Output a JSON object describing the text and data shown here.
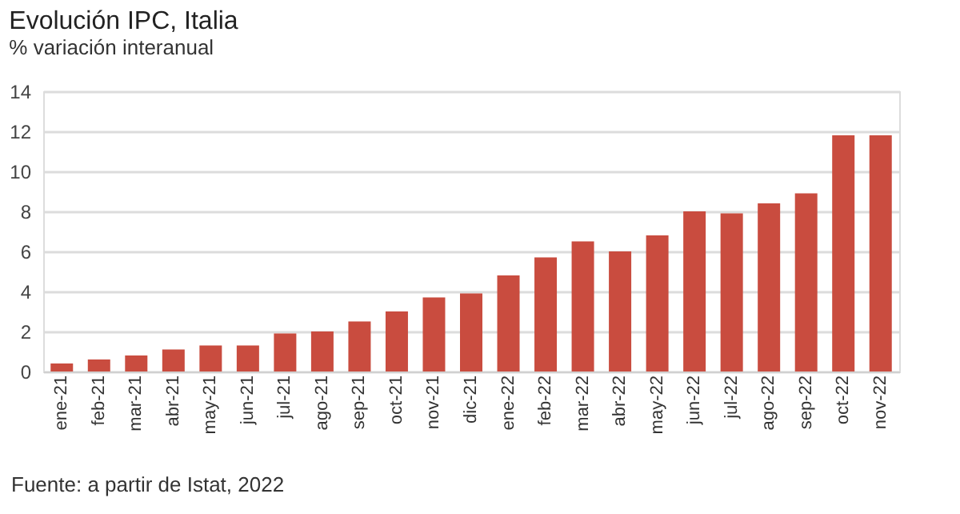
{
  "chart_data": {
    "type": "bar",
    "title": "Evolución IPC, Italia",
    "subtitle": "% variación interanual",
    "categories": [
      "ene-21",
      "feb-21",
      "mar-21",
      "abr-21",
      "may-21",
      "jun-21",
      "jul-21",
      "ago-21",
      "sep-21",
      "oct-21",
      "nov-21",
      "dic-21",
      "ene-22",
      "feb-22",
      "mar-22",
      "abr-22",
      "may-22",
      "jun-22",
      "jul-22",
      "ago-22",
      "sep-22",
      "oct-22",
      "nov-22"
    ],
    "values": [
      0.4,
      0.6,
      0.8,
      1.1,
      1.3,
      1.3,
      1.9,
      2.0,
      2.5,
      3.0,
      3.7,
      3.9,
      4.8,
      5.7,
      6.5,
      6.0,
      6.8,
      8.0,
      7.9,
      8.4,
      8.9,
      11.8,
      11.8
    ],
    "color": "#c94c3f",
    "ylim": [
      0,
      14
    ],
    "yticks": [
      0,
      2,
      4,
      6,
      8,
      10,
      12,
      14
    ],
    "grid": "y",
    "annotations": [
      "Fuente: a partir de Istat, 2022"
    ]
  }
}
